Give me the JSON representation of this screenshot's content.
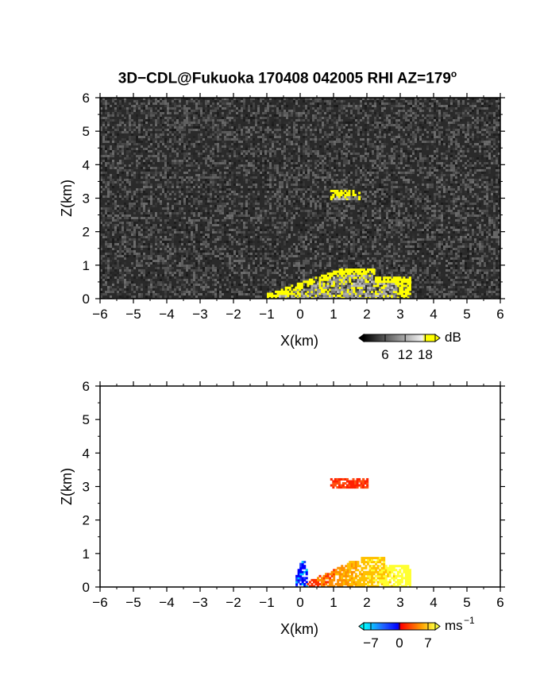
{
  "title": {
    "text": "3D−CDL@Fukuoka 170408 042005 RHI AZ=179",
    "degree": "o"
  },
  "chart_data": [
    {
      "type": "heatmap",
      "panel": "signal-intensity",
      "xlabel": "X(km)",
      "ylabel": "Z(km)",
      "xlim": [
        -6,
        6
      ],
      "ylim": [
        0,
        6
      ],
      "xticks": [
        "−6",
        "−5",
        "−4",
        "−3",
        "−2",
        "−1",
        "0",
        "1",
        "2",
        "3",
        "4",
        "5",
        "6"
      ],
      "yticks": [
        "0",
        "1",
        "2",
        "3",
        "4",
        "5",
        "6"
      ],
      "background": "grayscale noise (low dB)",
      "colorbar": {
        "unit": "dB",
        "ticks": [
          "6",
          "12",
          "18"
        ],
        "colors": [
          "#000000",
          "#ffffff",
          "#ffff00"
        ]
      },
      "features": [
        {
          "label": "elevated echo",
          "x_range": [
            0.9,
            1.8
          ],
          "z_range": [
            2.95,
            3.25
          ],
          "level": "high"
        },
        {
          "label": "low-level echo layer",
          "x_range": [
            -1.0,
            3.3
          ],
          "z_range": [
            0.0,
            0.9
          ],
          "level": "high"
        }
      ]
    },
    {
      "type": "heatmap",
      "panel": "doppler-velocity",
      "xlabel": "X(km)",
      "ylabel": "Z(km)",
      "xlim": [
        -6,
        6
      ],
      "ylim": [
        0,
        6
      ],
      "xticks": [
        "−6",
        "−5",
        "−4",
        "−3",
        "−2",
        "−1",
        "0",
        "1",
        "2",
        "3",
        "4",
        "5",
        "6"
      ],
      "yticks": [
        "0",
        "1",
        "2",
        "3",
        "4",
        "5",
        "6"
      ],
      "colorbar": {
        "unit": "ms",
        "unit_exponent": "−1",
        "ticks": [
          "−7",
          "0",
          "7"
        ],
        "colors": [
          "#00ffff",
          "#0000ff",
          "#ff0000",
          "#ffff00"
        ]
      },
      "features": [
        {
          "label": "elevated echo",
          "x_range": [
            0.9,
            2.0
          ],
          "z_range": [
            2.95,
            3.25
          ],
          "velocity": 2
        },
        {
          "label": "approaching core",
          "x_range": [
            -0.2,
            0.2
          ],
          "z_range": [
            0.0,
            0.8
          ],
          "velocity": -5
        },
        {
          "label": "receding layer",
          "x_range": [
            0.2,
            3.3
          ],
          "z_range": [
            0.0,
            0.9
          ],
          "velocity": 5
        }
      ]
    }
  ]
}
